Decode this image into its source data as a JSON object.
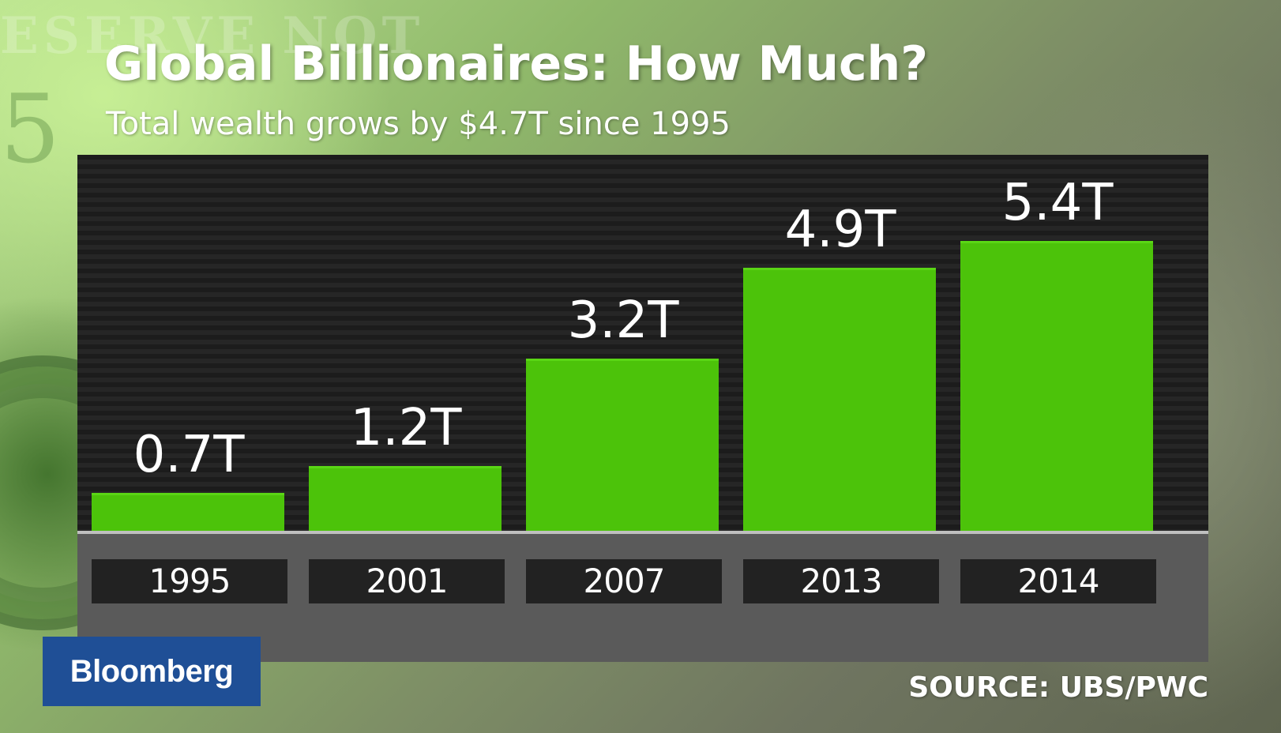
{
  "background": {
    "bill_text": "ESERVE NOT",
    "bill_number": "5"
  },
  "header": {
    "title": "Global Billionaires: How Much?",
    "subtitle": "Total wealth grows by $4.7T since 1995"
  },
  "footer": {
    "logo": "Bloomberg",
    "source": "SOURCE: UBS/PWC"
  },
  "colors": {
    "bar": "#4cc30a",
    "plot_background": "#202020",
    "panel": "#5a5a5a",
    "logo_background": "#1f4f96"
  },
  "chart_data": {
    "type": "bar",
    "title": "Global Billionaires: How Much?",
    "subtitle": "Total wealth grows by $4.7T since 1995",
    "categories": [
      "1995",
      "2001",
      "2007",
      "2013",
      "2014"
    ],
    "values": [
      0.7,
      1.2,
      3.2,
      4.9,
      5.4
    ],
    "value_labels": [
      "0.7T",
      "1.2T",
      "3.2T",
      "4.9T",
      "5.4T"
    ],
    "unit": "T",
    "ylim": [
      0,
      6
    ],
    "grid": false,
    "legend": "none"
  }
}
